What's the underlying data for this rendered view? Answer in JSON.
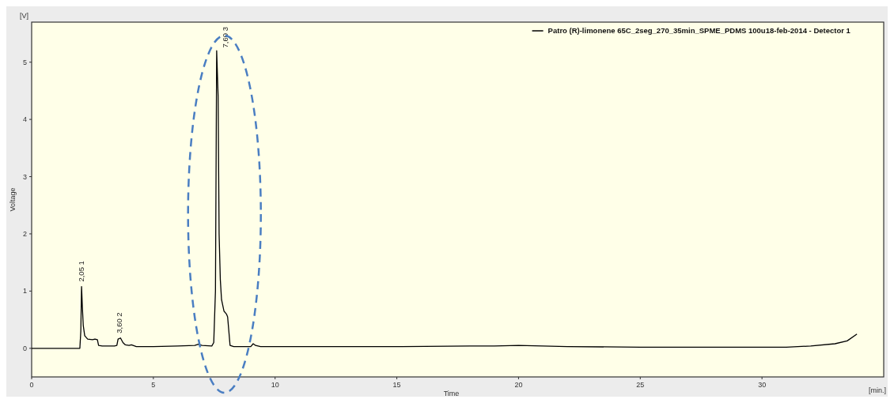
{
  "chart_data": {
    "type": "line",
    "xlabel": "Time",
    "ylabel": "Voltage",
    "xlim": [
      0,
      35
    ],
    "xticks": [
      0,
      5,
      10,
      15,
      20,
      25,
      30
    ],
    "ylim": [
      -0.5,
      5.7
    ],
    "yticks": [
      0,
      1,
      2,
      3,
      4,
      5
    ],
    "grid": false,
    "legend": "top right",
    "marker": "none",
    "annotations": [
      "[V]",
      "[min.]",
      {
        "text": "2,05  1",
        "x": 2.05,
        "y": 1.08
      },
      {
        "text": "3,60  2",
        "x": 3.6,
        "y": 0.18
      },
      {
        "text": "7,60  3",
        "x": 7.6,
        "y": 5.2
      }
    ],
    "series": [
      {
        "name": "Patro (R)-limonene 65C_2seg_270_35min_SPME_PDMS 100u18-feb-2014 - Detector 1",
        "color": "#000000",
        "x": [
          0,
          1.98,
          2.02,
          2.05,
          2.08,
          2.12,
          2.18,
          2.3,
          2.5,
          2.6,
          2.7,
          2.75,
          2.9,
          3.4,
          3.5,
          3.55,
          3.65,
          3.75,
          3.85,
          4.0,
          4.1,
          4.3,
          5,
          6,
          6.7,
          6.85,
          7.0,
          7.4,
          7.48,
          7.55,
          7.6,
          7.63,
          7.66,
          7.7,
          7.75,
          7.8,
          7.9,
          8.0,
          8.05,
          8.1,
          8.15,
          8.3,
          9.0,
          9.1,
          9.2,
          9.4,
          12,
          15,
          18,
          19,
          20,
          21,
          22,
          25,
          28,
          31,
          32,
          33,
          33.5,
          33.9
        ],
        "values": [
          0,
          0,
          0.3,
          1.08,
          0.75,
          0.4,
          0.22,
          0.16,
          0.15,
          0.16,
          0.15,
          0.05,
          0.04,
          0.04,
          0.05,
          0.16,
          0.18,
          0.1,
          0.06,
          0.05,
          0.06,
          0.03,
          0.03,
          0.04,
          0.05,
          0.07,
          0.05,
          0.04,
          0.1,
          1.0,
          5.2,
          4.8,
          4.4,
          2.0,
          1.2,
          0.85,
          0.65,
          0.6,
          0.55,
          0.3,
          0.05,
          0.03,
          0.03,
          0.08,
          0.05,
          0.03,
          0.03,
          0.03,
          0.04,
          0.04,
          0.05,
          0.04,
          0.03,
          0.02,
          0.02,
          0.02,
          0.04,
          0.08,
          0.13,
          0.25
        ]
      }
    ]
  }
}
